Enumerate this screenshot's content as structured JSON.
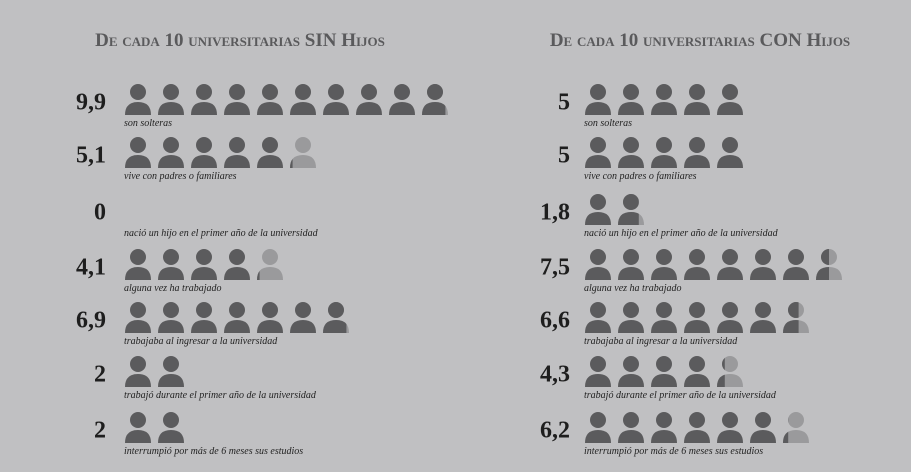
{
  "chart_data": [
    {
      "type": "pictograph",
      "title": "De cada 10 universitarias SIN Hijos",
      "categories": [
        "son solteras",
        "vive con padres o familiares",
        "nació un hijo en el primer año de la universidad",
        "alguna vez ha trabajado",
        "trabajaba al ingresar a la universidad",
        "trabajó durante el primer año de la universidad",
        "interrumpió por más de 6 meses sus estudios"
      ],
      "values": [
        9.9,
        5.1,
        0,
        4.1,
        6.9,
        2,
        2
      ],
      "value_labels": [
        "9,9",
        "5,1",
        "0",
        "4,1",
        "6,9",
        "2",
        "2"
      ],
      "color": "#5b5b5d",
      "remainder_color": "#9a9a9c"
    },
    {
      "type": "pictograph",
      "title": "De cada 10 universitarias CON Hijos",
      "categories": [
        "son solteras",
        "vive con padres o familiares",
        "nació un hijo en el primer año de la universidad",
        "alguna vez ha trabajado",
        "trabajaba al ingresar a la universidad",
        "trabajó durante el primer año de la universidad",
        "interrumpió por más de 6 meses sus estudios"
      ],
      "values": [
        5,
        5,
        1.8,
        7.5,
        6.6,
        4.3,
        6.2
      ],
      "value_labels": [
        "5",
        "5",
        "1,8",
        "7,5",
        "6,6",
        "4,3",
        "6,2"
      ],
      "color": "#5b5b5d",
      "remainder_color": "#9a9a9c"
    }
  ]
}
